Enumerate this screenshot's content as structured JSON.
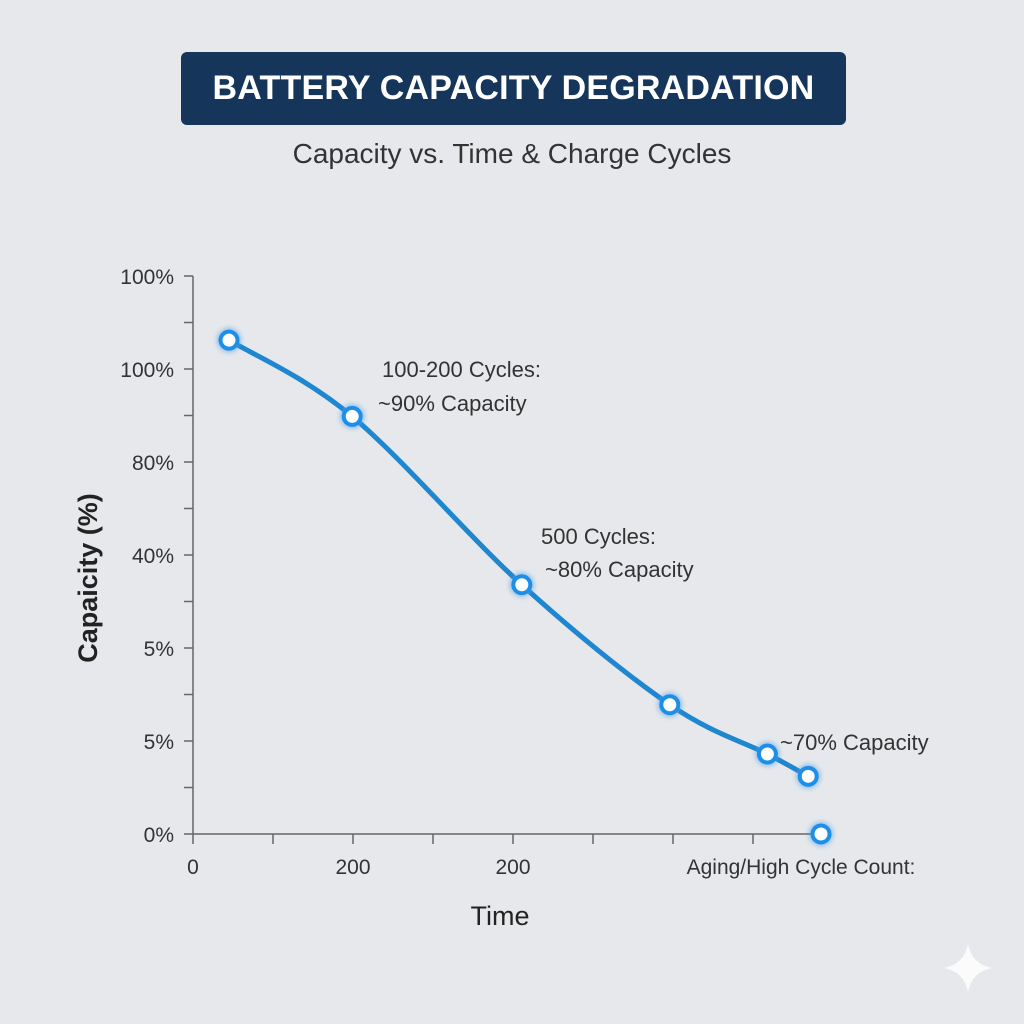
{
  "chart_data": {
    "type": "line",
    "title": "BATTERY CAPACITY DEGRADATION",
    "subtitle": "Capacity vs. Time & Charge Cycles",
    "xlabel": "Time",
    "ylabel": "Capaicity (%)",
    "y_tick_labels": [
      "0%",
      "5%",
      "5%",
      "40%",
      "80%",
      "100%",
      "100%"
    ],
    "x_tick_labels": [
      {
        "pos": 0,
        "label": "0"
      },
      {
        "pos": 2,
        "label": "200"
      },
      {
        "pos": 4,
        "label": "200"
      },
      {
        "pos": 7.6,
        "label": "Aging/High Cycle Count:"
      }
    ],
    "x_ticks": [
      0,
      1,
      2,
      3,
      4,
      5,
      6,
      7
    ],
    "xlim": [
      0,
      8
    ],
    "ylim": [
      0,
      6
    ],
    "grid": false,
    "series": [
      {
        "x": [
          0.45,
          1.99,
          4.11,
          5.96,
          7.18,
          7.69
        ],
        "y": [
          5.31,
          4.49,
          2.68,
          1.39,
          0.86,
          0.62
        ]
      }
    ],
    "isolated_points": [
      {
        "x": 7.85,
        "y": 0
      }
    ],
    "annotations": [
      {
        "lines": [
          "100-200 Cycles:",
          "~90% Capacity"
        ]
      },
      {
        "lines": [
          "500 Cycles:",
          "~80% Capacity"
        ]
      },
      {
        "lines": [
          "~70% Capacity"
        ]
      }
    ],
    "colors": {
      "line": "#1f86d0",
      "marker_stroke": "#1a8fe8",
      "marker_fill": "#ffffff",
      "title_bg": "#15365a"
    }
  }
}
